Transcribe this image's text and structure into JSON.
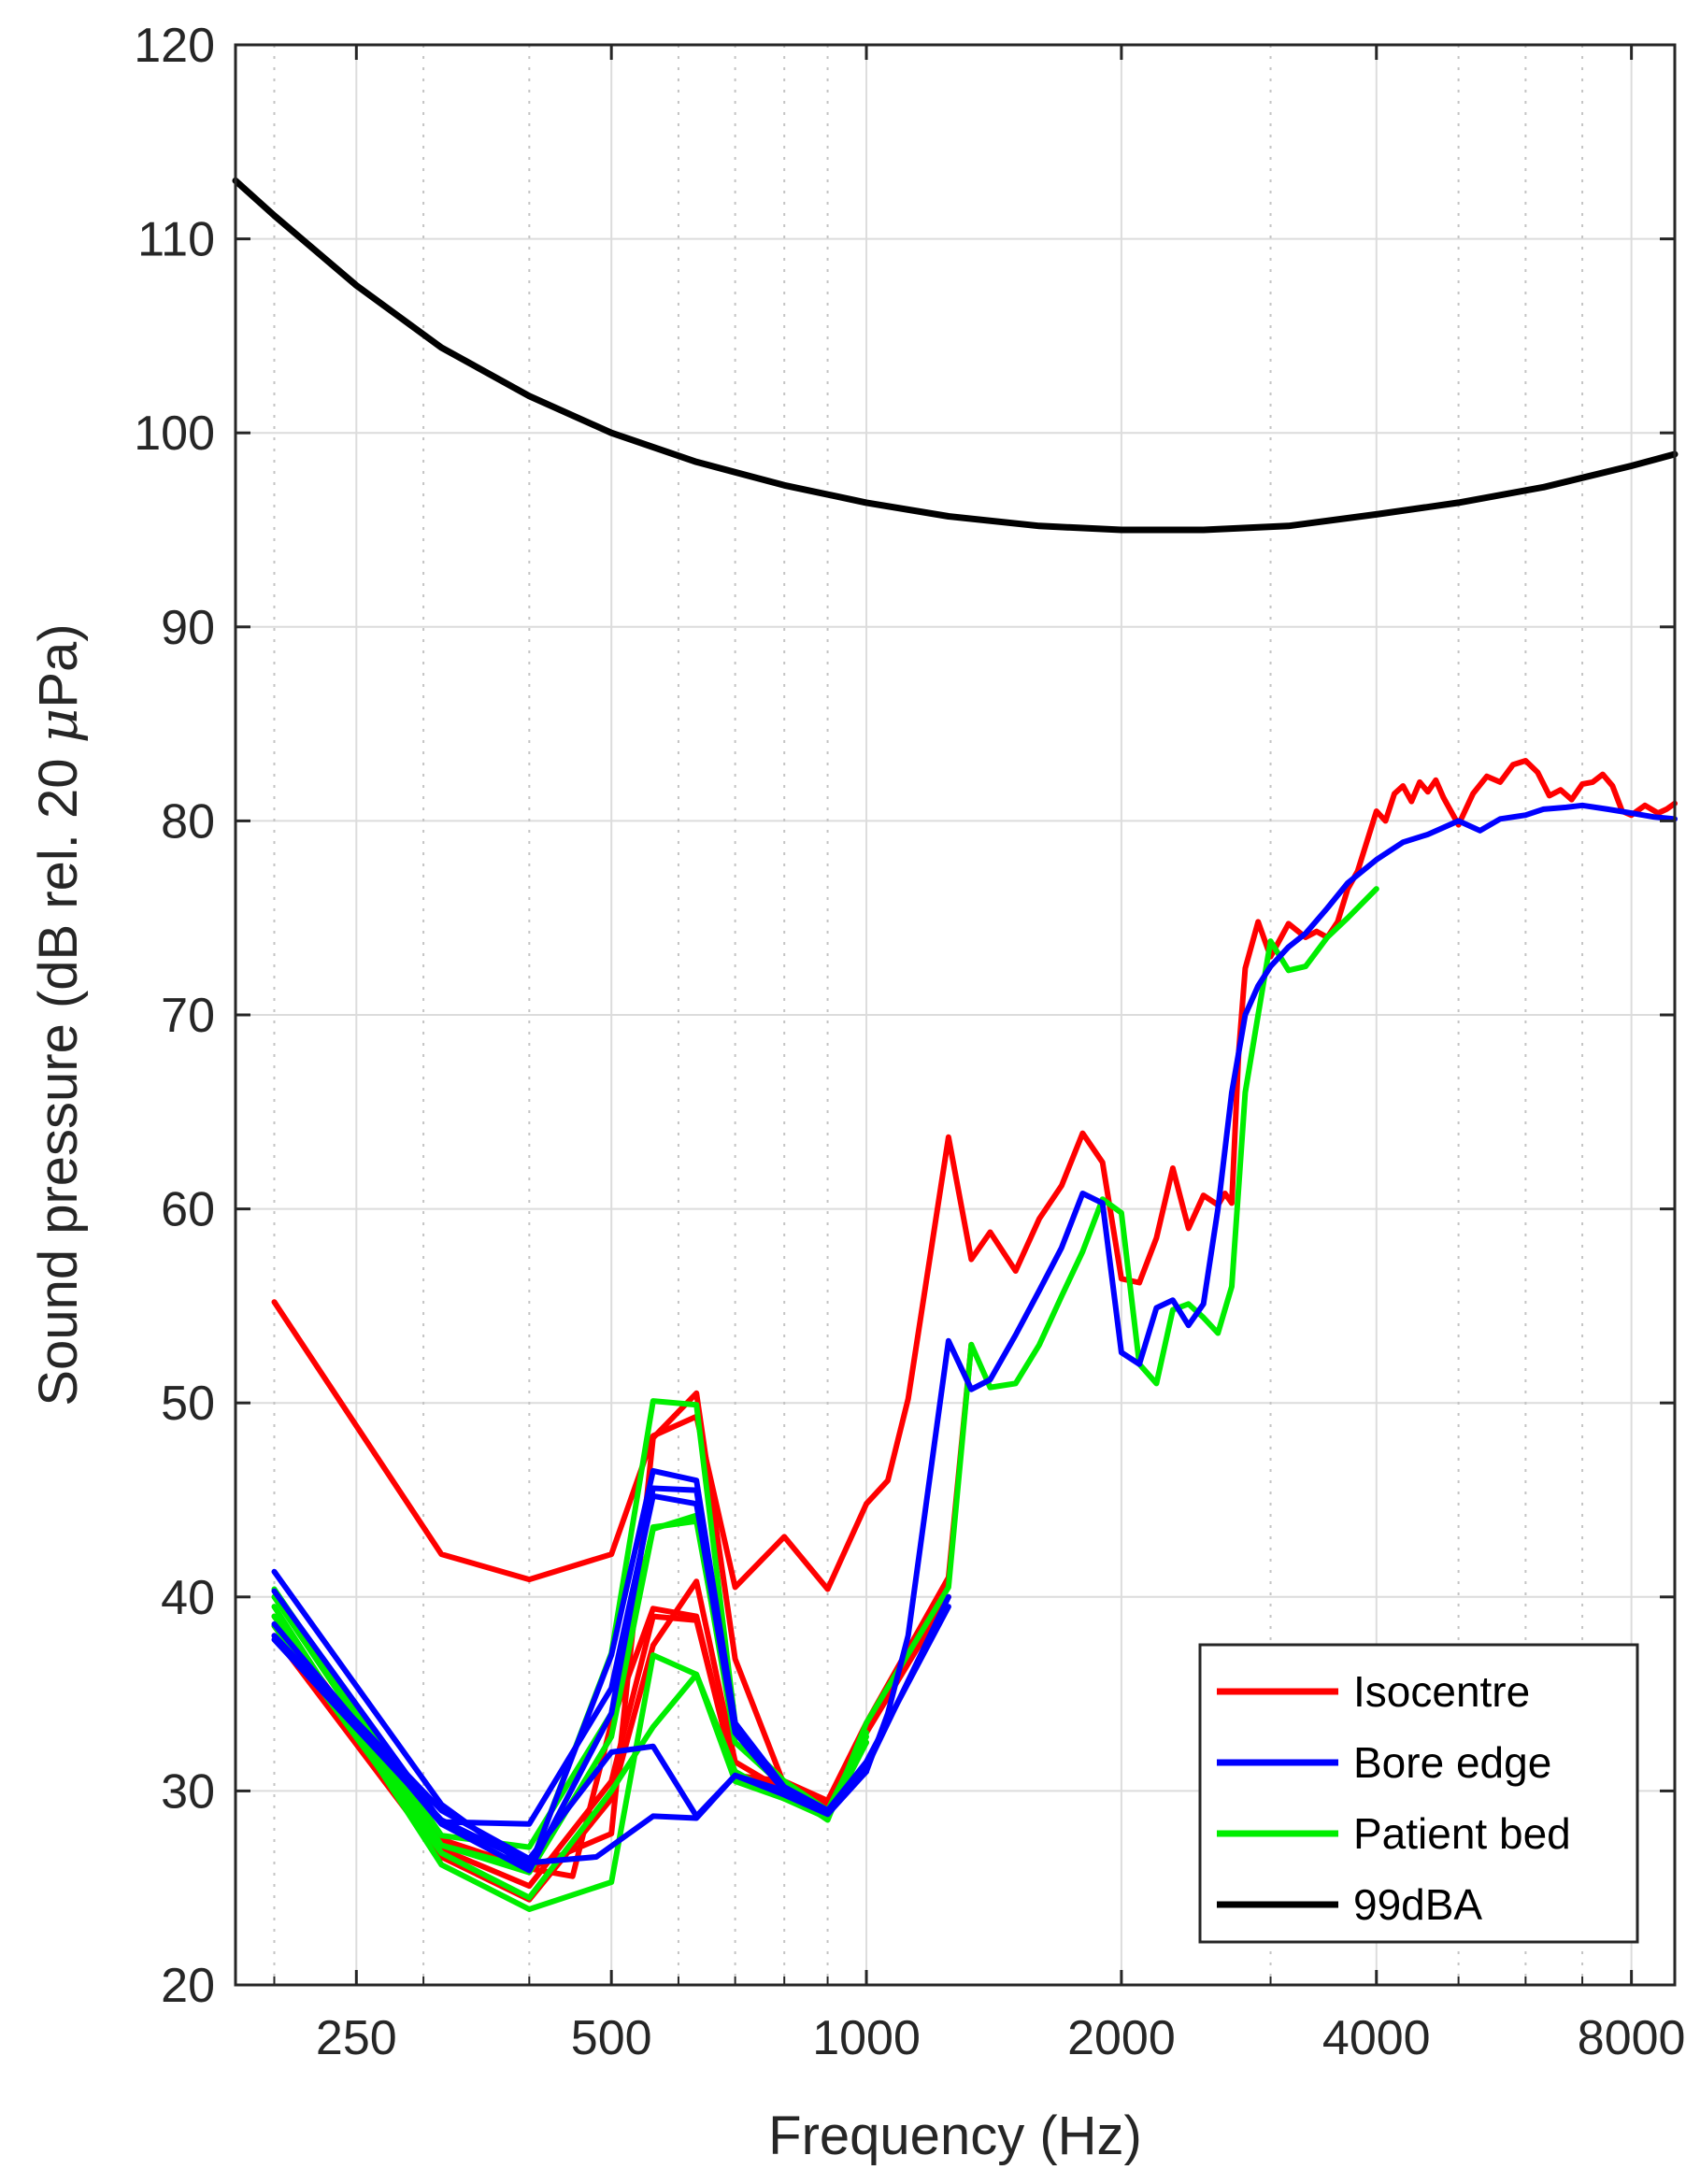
{
  "chart_data": {
    "type": "line",
    "xscale": "log",
    "xlabel": "Frequency (Hz)",
    "ylabel_prefix": "Sound pressure (dB rel. 20 ",
    "ylabel_mu": "μ",
    "ylabel_suffix": "Pa)",
    "xlim": [
      180,
      9000
    ],
    "ylim": [
      20,
      120
    ],
    "xticks": [
      250,
      500,
      1000,
      2000,
      4000,
      8000
    ],
    "xtick_labels": [
      "250",
      "500",
      "1000",
      "2000",
      "4000",
      "8000"
    ],
    "yticks": [
      20,
      30,
      40,
      50,
      60,
      70,
      80,
      90,
      100,
      110,
      120
    ],
    "ytick_labels": [
      "20",
      "30",
      "40",
      "50",
      "60",
      "70",
      "80",
      "90",
      "100",
      "110",
      "120"
    ],
    "grid": true,
    "legend_position": "bottom-right",
    "legend": [
      {
        "label": "Isocentre",
        "color": "#ff0000"
      },
      {
        "label": "Bore edge",
        "color": "#0000ff"
      },
      {
        "label": "Patient bed",
        "color": "#00ee00"
      },
      {
        "label": "99dBA",
        "color": "#000000"
      }
    ],
    "series": [
      {
        "name": "99dBA",
        "color": "#000000",
        "width": 7,
        "x": [
          180,
          200,
          250,
          315,
          400,
          500,
          630,
          800,
          1000,
          1250,
          1600,
          2000,
          2500,
          3150,
          4000,
          5000,
          6300,
          8000,
          9000
        ],
        "y": [
          113,
          111.2,
          107.6,
          104.4,
          101.9,
          100.0,
          98.5,
          97.3,
          96.4,
          95.7,
          95.2,
          95.0,
          95.0,
          95.2,
          95.8,
          96.4,
          97.2,
          98.3,
          98.9
        ]
      },
      {
        "name": "Isocentre 1",
        "color": "#ff0000",
        "width": 6,
        "x": [
          200,
          315,
          400,
          500,
          560,
          630,
          700,
          800,
          900,
          1000,
          1060,
          1120,
          1250,
          1330,
          1400,
          1500,
          1600,
          1700,
          1800,
          1900,
          2000,
          2100,
          2200,
          2300,
          2400,
          2500,
          2600,
          2650,
          2700,
          2750,
          2800,
          2900,
          3000,
          3150,
          3300,
          3400,
          3500,
          3600,
          3700,
          3800,
          4000,
          4100,
          4200,
          4300,
          4400,
          4500,
          4600,
          4700,
          4800,
          5000,
          5200,
          5400,
          5600,
          5800,
          6000,
          6200,
          6400,
          6600,
          6800,
          7000,
          7200,
          7400,
          7600,
          7800,
          8000,
          8300,
          8600,
          8800,
          9000
        ],
        "y": [
          55.2,
          42.2,
          40.9,
          42.2,
          48.3,
          49.3,
          40.5,
          43.1,
          40.4,
          44.8,
          46.0,
          50.2,
          63.7,
          57.4,
          58.8,
          56.8,
          59.5,
          61.2,
          63.9,
          62.4,
          56.4,
          56.2,
          58.5,
          62.1,
          59.0,
          60.7,
          60.2,
          60.8,
          60.3,
          68.0,
          72.4,
          74.8,
          73.0,
          74.7,
          74.0,
          74.3,
          74.0,
          74.8,
          76.5,
          77.4,
          80.5,
          80.0,
          81.4,
          81.8,
          81.0,
          82.0,
          81.5,
          82.1,
          81.2,
          79.8,
          81.4,
          82.3,
          82.0,
          82.9,
          83.1,
          82.5,
          81.3,
          81.6,
          81.1,
          81.9,
          82.0,
          82.4,
          81.8,
          80.5,
          80.3,
          80.8,
          80.4,
          80.6,
          80.9
        ]
      },
      {
        "name": "Isocentre 2",
        "color": "#ff0000",
        "width": 6,
        "x": [
          200,
          315,
          400,
          500,
          560,
          630,
          700,
          800,
          900,
          1000,
          1250,
          1330
        ],
        "y": [
          38.5,
          27.0,
          25.1,
          30.5,
          39.0,
          38.8,
          30.8,
          30.5,
          29.5,
          33.5,
          41.0,
          53.0
        ]
      },
      {
        "name": "Isocentre 3",
        "color": "#ff0000",
        "width": 6,
        "x": [
          200,
          315,
          400,
          500,
          560,
          630,
          700,
          800,
          900,
          1000,
          1250
        ],
        "y": [
          38.0,
          26.6,
          24.4,
          29.6,
          37.5,
          40.8,
          31.5,
          30.0,
          29.0,
          33.0,
          40.0
        ]
      },
      {
        "name": "Isocentre 4",
        "color": "#ff0000",
        "width": 6,
        "x": [
          200,
          315,
          400,
          500,
          560,
          630,
          700,
          800,
          900,
          1000
        ],
        "y": [
          39.0,
          27.5,
          26.0,
          27.8,
          48.2,
          50.5,
          36.8,
          30.3,
          29.3,
          32.5
        ]
      },
      {
        "name": "Isocentre 5",
        "color": "#ff0000",
        "width": 6,
        "x": [
          400,
          450,
          500,
          560,
          630,
          700,
          800
        ],
        "y": [
          26.0,
          25.6,
          33.5,
          39.4,
          39.0,
          30.8,
          29.6
        ]
      },
      {
        "name": "Patient bed 1",
        "color": "#00ee00",
        "width": 6,
        "x": [
          200,
          315,
          400,
          500,
          560,
          630,
          700,
          800,
          900,
          1000,
          1250,
          1330,
          1400,
          1500,
          1600,
          1700,
          1800,
          1900,
          2000,
          2100,
          2200,
          2300,
          2400,
          2500,
          2600,
          2700,
          2800,
          2900,
          3000,
          3150,
          3300,
          3500,
          3700,
          4000
        ],
        "y": [
          40.0,
          27.2,
          26.0,
          37.1,
          50.1,
          49.9,
          33.5,
          30.0,
          28.5,
          33.5,
          40.5,
          53.0,
          50.8,
          51.0,
          53.0,
          55.5,
          57.8,
          60.5,
          59.8,
          52.0,
          51.0,
          54.8,
          55.1,
          54.4,
          53.6,
          56.0,
          66.0,
          70.0,
          73.8,
          72.3,
          72.5,
          74.0,
          75.0,
          76.5
        ]
      },
      {
        "name": "Patient bed 2",
        "color": "#00ee00",
        "width": 6,
        "x": [
          200,
          315,
          400,
          500,
          560,
          630,
          700,
          800,
          900,
          1000
        ],
        "y": [
          39.5,
          26.2,
          23.9,
          25.3,
          37.0,
          36.0,
          31.0,
          29.6,
          28.6,
          32.5
        ]
      },
      {
        "name": "Patient bed 3",
        "color": "#00ee00",
        "width": 6,
        "x": [
          200,
          315,
          400,
          500,
          560,
          630,
          700,
          800,
          900,
          1000
        ],
        "y": [
          38.5,
          26.8,
          24.5,
          30.0,
          33.3,
          36.0,
          30.5,
          29.6,
          28.8,
          33.0
        ]
      },
      {
        "name": "Patient bed 4",
        "color": "#00ee00",
        "width": 6,
        "x": [
          200,
          315,
          400,
          500,
          560,
          630,
          700,
          800,
          900,
          1000
        ],
        "y": [
          40.4,
          27.7,
          27.1,
          34.0,
          43.6,
          43.9,
          33.0,
          30.5,
          29.0,
          33.0
        ]
      },
      {
        "name": "Patient bed 5",
        "color": "#00ee00",
        "width": 6,
        "x": [
          200,
          315,
          400,
          500,
          560,
          630,
          700,
          800,
          900,
          1000
        ],
        "y": [
          39.0,
          27.2,
          25.8,
          32.8,
          43.5,
          44.2,
          32.5,
          30.2,
          28.7,
          32.8
        ]
      },
      {
        "name": "Bore edge 1",
        "color": "#0000ff",
        "width": 6,
        "x": [
          200,
          315,
          400,
          500,
          560,
          630,
          700,
          800,
          900,
          1000,
          1060,
          1120,
          1250,
          1330,
          1400,
          1500,
          1600,
          1700,
          1800,
          1900,
          2000,
          2100,
          2200,
          2300,
          2400,
          2500,
          2600,
          2700,
          2800,
          2900,
          3000,
          3150,
          3300,
          3500,
          3700,
          4000,
          4300,
          4600,
          5000,
          5300,
          5600,
          6000,
          6300,
          6700,
          7000,
          7500,
          8000,
          8500,
          9000
        ],
        "y": [
          41.3,
          29.3,
          26.0,
          37.0,
          46.5,
          46.0,
          33.5,
          30.0,
          29.0,
          31.0,
          34.0,
          38.0,
          53.2,
          50.7,
          51.2,
          53.5,
          55.8,
          58.0,
          60.8,
          60.3,
          52.6,
          52.0,
          54.9,
          55.3,
          54.0,
          55.1,
          60.0,
          66.0,
          70.0,
          71.5,
          72.5,
          73.5,
          74.2,
          75.5,
          76.8,
          78.0,
          78.9,
          79.3,
          80.0,
          79.5,
          80.1,
          80.3,
          80.6,
          80.7,
          80.8,
          80.6,
          80.4,
          80.2,
          80.1
        ]
      },
      {
        "name": "Bore edge 2",
        "color": "#0000ff",
        "width": 6,
        "x": [
          200,
          315,
          400,
          500,
          560,
          630,
          700,
          800,
          900,
          1000,
          1250
        ],
        "y": [
          40.3,
          28.4,
          28.3,
          35.3,
          45.2,
          44.8,
          33.0,
          30.0,
          28.9,
          31.2,
          40.0
        ]
      },
      {
        "name": "Bore edge 3",
        "color": "#0000ff",
        "width": 6,
        "x": [
          200,
          315,
          400,
          500,
          560,
          630,
          700,
          800,
          900,
          1000,
          1250
        ],
        "y": [
          38.0,
          29.0,
          26.5,
          32.0,
          32.3,
          28.7,
          30.8,
          30.0,
          29.0,
          31.5,
          39.5
        ]
      },
      {
        "name": "Bore edge 4",
        "color": "#0000ff",
        "width": 6,
        "x": [
          200,
          315,
          400,
          480,
          560,
          630,
          700,
          800,
          900,
          1000
        ],
        "y": [
          37.8,
          28.5,
          26.3,
          26.6,
          28.7,
          28.6,
          30.8,
          29.8,
          28.8,
          31.0
        ]
      },
      {
        "name": "Bore edge 5",
        "color": "#0000ff",
        "width": 6,
        "x": [
          200,
          315,
          400,
          500,
          560,
          630,
          700,
          800,
          900,
          1000
        ],
        "y": [
          38.6,
          28.3,
          25.9,
          34.0,
          45.6,
          45.5,
          33.5,
          30.2,
          29.0,
          31.0
        ]
      }
    ]
  }
}
